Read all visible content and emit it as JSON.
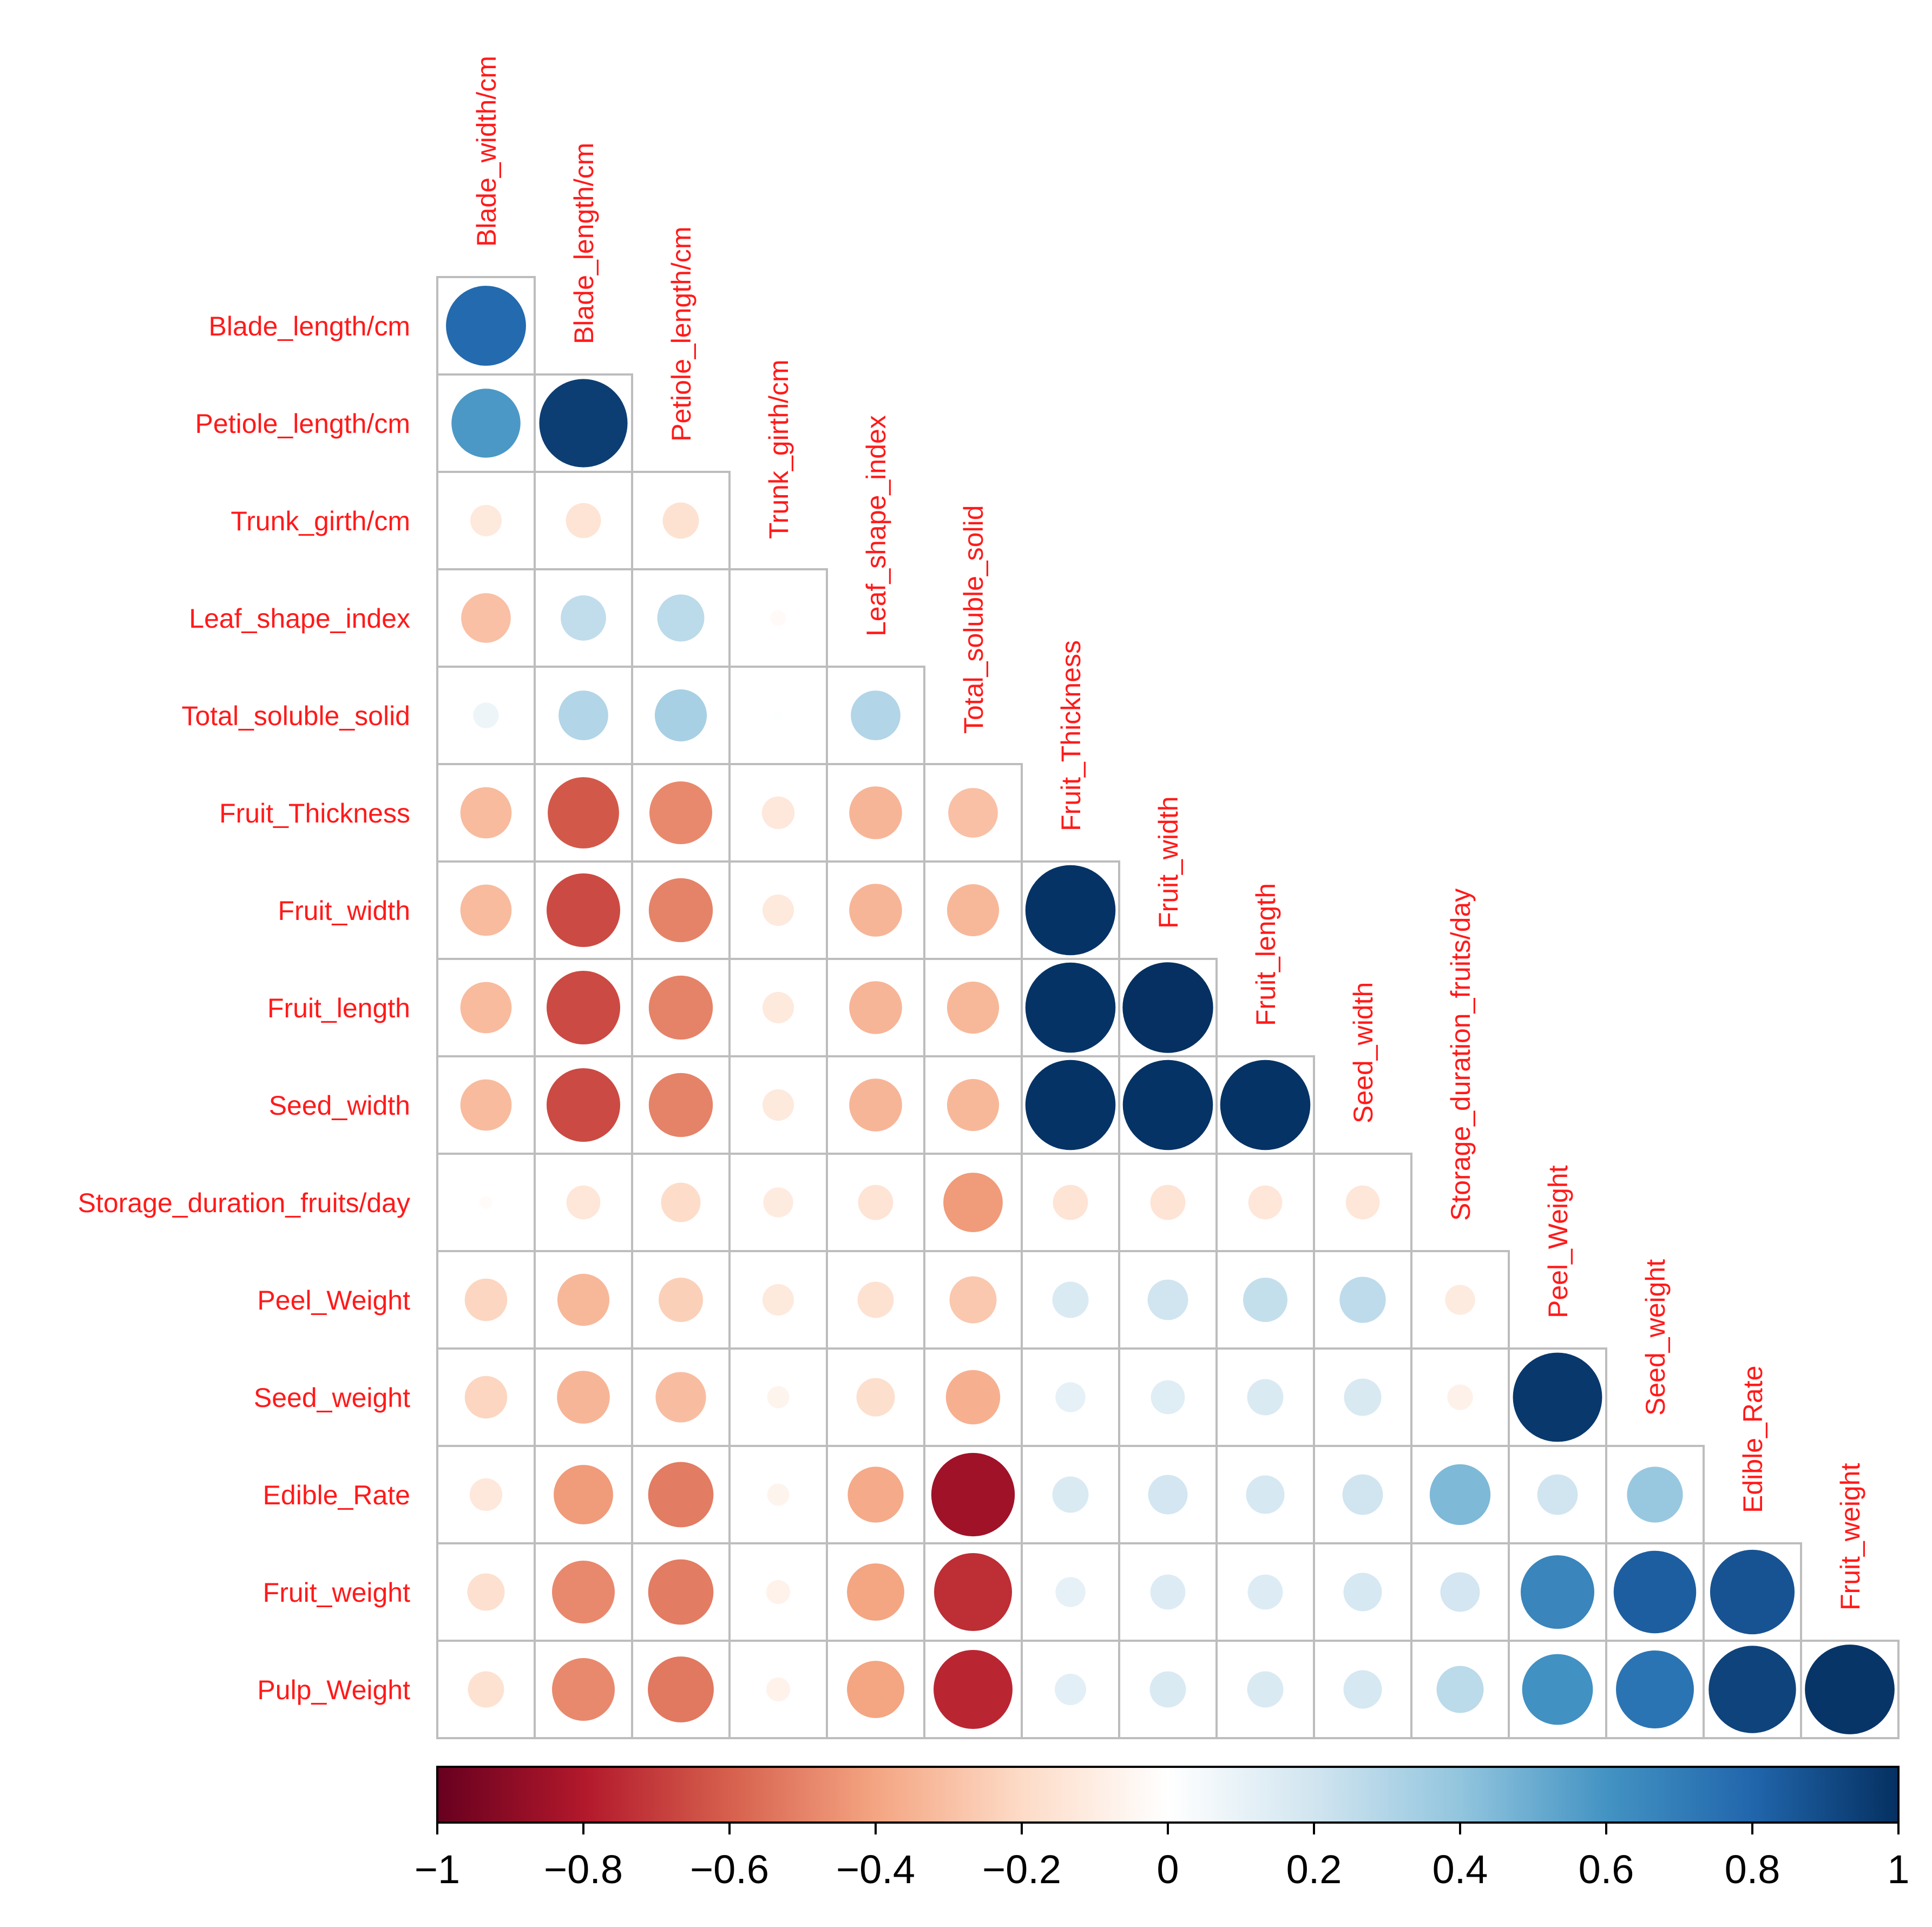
{
  "chart_data": {
    "type": "heatmap",
    "style": "lower-triangular correlation plot (circles, size and colour by r)",
    "row_labels": [
      "Blade_length/cm",
      "Petiole_length/cm",
      "Trunk_girth/cm",
      "Leaf_shape_index",
      "Total_soluble_solid",
      "Fruit_Thickness",
      "Fruit_width",
      "Fruit_length",
      "Seed_width",
      "Storage_duration_fruits/day",
      "Peel_Weight",
      "Seed_weight",
      "Edible_Rate",
      "Fruit_weight",
      "Pulp_Weight"
    ],
    "col_labels": [
      "Blade_width/cm",
      "Blade_length/cm",
      "Petiole_length/cm",
      "Trunk_girth/cm",
      "Leaf_shape_index",
      "Total_soluble_solid",
      "Fruit_Thickness",
      "Fruit_width",
      "Fruit_length",
      "Seed_width",
      "Storage_duration_fruits/day",
      "Peel_Weight",
      "Seed_weight",
      "Edible_Rate",
      "Fruit_weight"
    ],
    "values": [
      [
        0.78
      ],
      [
        0.58,
        0.95
      ],
      [
        -0.12,
        -0.15,
        -0.16
      ],
      [
        -0.3,
        0.25,
        0.27,
        -0.03
      ],
      [
        0.08,
        0.3,
        0.33,
        0.01,
        0.3
      ],
      [
        -0.32,
        -0.62,
        -0.48,
        -0.13,
        -0.34,
        -0.3
      ],
      [
        -0.32,
        -0.66,
        -0.5,
        -0.12,
        -0.34,
        -0.33,
        0.99
      ],
      [
        -0.32,
        -0.66,
        -0.5,
        -0.12,
        -0.34,
        -0.33,
        0.99,
        1.0
      ],
      [
        -0.32,
        -0.66,
        -0.5,
        -0.12,
        -0.34,
        -0.33,
        0.99,
        0.99,
        0.99
      ],
      [
        -0.02,
        -0.14,
        -0.19,
        -0.11,
        -0.15,
        -0.43,
        -0.15,
        -0.15,
        -0.14,
        -0.14
      ],
      [
        -0.22,
        -0.33,
        -0.24,
        -0.12,
        -0.16,
        -0.27,
        0.16,
        0.2,
        0.24,
        0.26,
        -0.11
      ],
      [
        -0.22,
        -0.34,
        -0.31,
        -0.06,
        -0.18,
        -0.36,
        0.11,
        0.14,
        0.16,
        0.17,
        -0.08,
        0.97
      ],
      [
        -0.13,
        -0.43,
        -0.52,
        -0.06,
        -0.38,
        -0.85,
        0.16,
        0.19,
        0.18,
        0.2,
        0.45,
        0.2,
        0.38
      ],
      [
        -0.17,
        -0.48,
        -0.52,
        -0.07,
        -0.4,
        -0.74,
        0.11,
        0.15,
        0.15,
        0.18,
        0.19,
        0.66,
        0.83,
        0.87
      ],
      [
        -0.16,
        -0.48,
        -0.53,
        -0.07,
        -0.4,
        -0.76,
        0.12,
        0.16,
        0.16,
        0.18,
        0.27,
        0.61,
        0.74,
        0.93,
        0.98
      ]
    ],
    "colorbar": {
      "range": [
        -1,
        1
      ],
      "ticks": [
        -1,
        -0.8,
        -0.6,
        -0.4,
        -0.2,
        0,
        0.2,
        0.4,
        0.6,
        0.8,
        1
      ],
      "tick_labels": [
        "−1",
        "−0.8",
        "−0.6",
        "−0.4",
        "−0.2",
        "0",
        "0.2",
        "0.4",
        "0.6",
        "0.8",
        "1"
      ]
    },
    "palette": [
      "#67001f",
      "#b2182b",
      "#d6604d",
      "#f4a582",
      "#fddbc7",
      "#ffffff",
      "#d1e5f0",
      "#92c5de",
      "#4393c3",
      "#2166ac",
      "#053061"
    ],
    "label_color": "#ff1a1a",
    "title": "",
    "xlabel": "",
    "ylabel": ""
  }
}
